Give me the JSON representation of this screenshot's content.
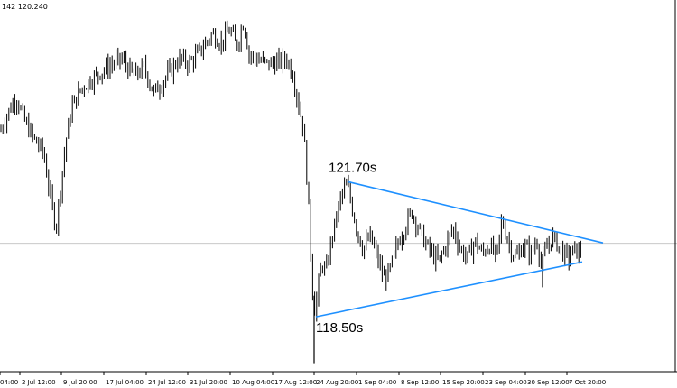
{
  "symbol_info": "142 120.240",
  "chart_data": {
    "type": "candlestick",
    "title": "",
    "xlabel": "",
    "ylabel": "",
    "grid": false,
    "ylim": [
      117.2,
      126.0
    ],
    "current_price_line": 120.24,
    "x_tick_labels": [
      "04:00",
      "2 Jul 12:00",
      "9 Jul 20:00",
      "17 Jul 04:00",
      "24 Jul 12:00",
      "31 Jul 20:00",
      "10 Aug 04:00",
      "17 Aug 12:00",
      "24 Aug 20:00",
      "1 Sep 04:00",
      "8 Sep 12:00",
      "15 Sep 20:00",
      "23 Sep 04:00",
      "30 Sep 12:00",
      "7 Oct 20:00"
    ],
    "path_points": [
      [
        0,
        122.9
      ],
      [
        8,
        123.3
      ],
      [
        18,
        123.7
      ],
      [
        28,
        123.1
      ],
      [
        38,
        122.7
      ],
      [
        48,
        122.4
      ],
      [
        57,
        121.2
      ],
      [
        62,
        120.6
      ],
      [
        66,
        121.4
      ],
      [
        74,
        122.8
      ],
      [
        80,
        123.5
      ],
      [
        90,
        123.9
      ],
      [
        100,
        124.1
      ],
      [
        112,
        124.3
      ],
      [
        125,
        124.5
      ],
      [
        135,
        124.6
      ],
      [
        148,
        124.2
      ],
      [
        160,
        124.4
      ],
      [
        170,
        123.8
      ],
      [
        178,
        124.0
      ],
      [
        188,
        124.3
      ],
      [
        198,
        124.6
      ],
      [
        210,
        124.5
      ],
      [
        222,
        124.8
      ],
      [
        235,
        125.2
      ],
      [
        245,
        125.0
      ],
      [
        255,
        125.3
      ],
      [
        262,
        124.9
      ],
      [
        270,
        125.5
      ],
      [
        276,
        124.7
      ],
      [
        285,
        124.6
      ],
      [
        295,
        124.5
      ],
      [
        305,
        124.5
      ],
      [
        318,
        124.6
      ],
      [
        325,
        124.2
      ],
      [
        330,
        123.6
      ],
      [
        336,
        123.0
      ],
      [
        340,
        121.8
      ],
      [
        343,
        120.6
      ],
      [
        346,
        119.2
      ],
      [
        349,
        118.6
      ],
      [
        353,
        119.3
      ],
      [
        357,
        119.8
      ],
      [
        361,
        119.5
      ],
      [
        366,
        120.2
      ],
      [
        370,
        120.6
      ],
      [
        375,
        121.1
      ],
      [
        380,
        121.5
      ],
      [
        385,
        121.6
      ],
      [
        390,
        121.1
      ],
      [
        395,
        120.6
      ],
      [
        402,
        120.1
      ],
      [
        410,
        120.4
      ],
      [
        418,
        119.9
      ],
      [
        425,
        119.4
      ],
      [
        432,
        119.6
      ],
      [
        440,
        120.2
      ],
      [
        448,
        120.6
      ],
      [
        456,
        121.0
      ],
      [
        462,
        120.7
      ],
      [
        470,
        120.3
      ],
      [
        478,
        120.0
      ],
      [
        486,
        119.8
      ],
      [
        494,
        120.2
      ],
      [
        502,
        120.6
      ],
      [
        510,
        120.1
      ],
      [
        518,
        119.9
      ],
      [
        526,
        120.3
      ],
      [
        534,
        120.0
      ],
      [
        542,
        120.2
      ],
      [
        550,
        119.9
      ],
      [
        556,
        120.8
      ],
      [
        560,
        120.5
      ],
      [
        566,
        120.1
      ],
      [
        572,
        119.9
      ],
      [
        580,
        120.2
      ],
      [
        588,
        120.0
      ],
      [
        595,
        120.3
      ],
      [
        600,
        119.7
      ],
      [
        605,
        120.1
      ],
      [
        612,
        120.4
      ],
      [
        618,
        120.2
      ],
      [
        624,
        120.0
      ],
      [
        630,
        119.9
      ],
      [
        636,
        120.1
      ],
      [
        642,
        120.0
      ],
      [
        645,
        120.24
      ]
    ],
    "extreme_spikes": [
      {
        "value": 117.4,
        "note": "spike low near 24 Aug"
      },
      {
        "value": 119.2,
        "note": "spike low near 30 Sep"
      }
    ],
    "trendlines": [
      {
        "name": "upper",
        "from": 121.7,
        "to": 120.25
      },
      {
        "name": "lower",
        "from": 118.5,
        "to": 119.8
      }
    ],
    "annotations": [
      {
        "text": "121.70s",
        "value": 121.7
      },
      {
        "text": "118.50s",
        "value": 118.5
      }
    ],
    "colors": {
      "candles": "#000000",
      "trendline": "#1e90ff",
      "current_price_line": "#c0c0c0",
      "background": "#ffffff"
    }
  }
}
